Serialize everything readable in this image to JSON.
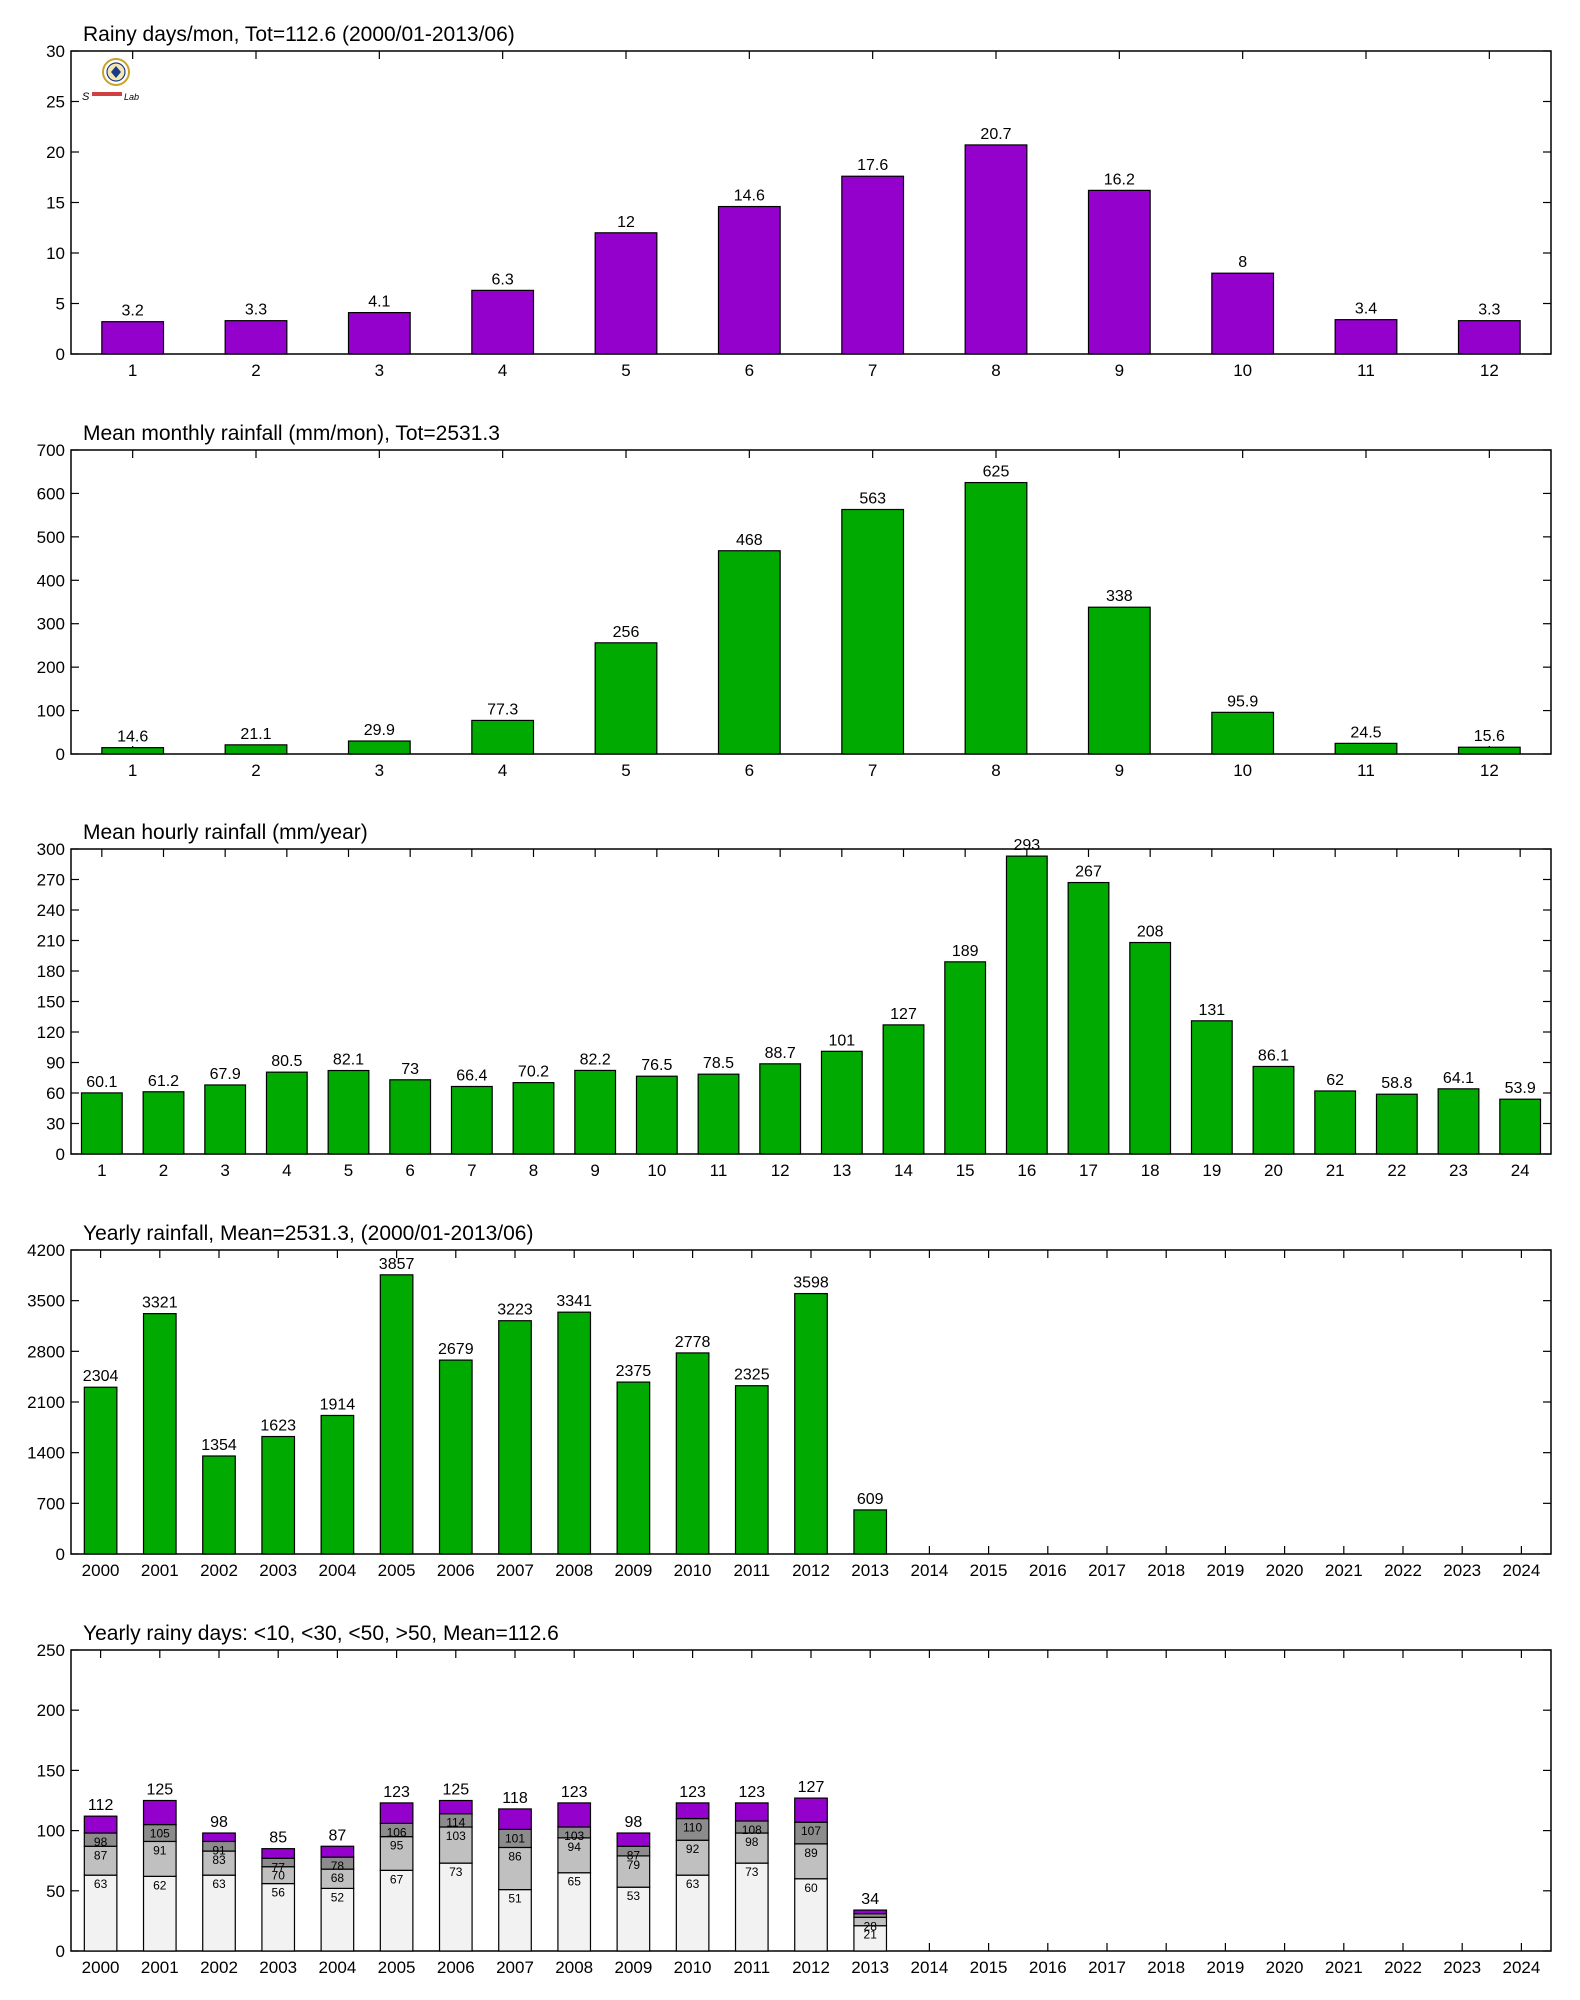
{
  "colors": {
    "purple": "#9400cc",
    "green": "#00aa00",
    "frame": "#000000",
    "stack_lt10": "#f2f2f2",
    "stack_lt30": "#c0c0c0",
    "stack_lt50": "#8c8c8c",
    "stack_gt50": "#9400cc"
  },
  "logo": {
    "text_left": "S",
    "text_right": "Lab",
    "icon": "lab-seal-logo-icon"
  },
  "chart_data": [
    {
      "type": "bar",
      "title": "Rainy days/mon, Tot=112.6 (2000/01-2013/06)",
      "categories": [
        "1",
        "2",
        "3",
        "4",
        "5",
        "6",
        "7",
        "8",
        "9",
        "10",
        "11",
        "12"
      ],
      "values": [
        3.2,
        3.3,
        4.1,
        6.3,
        12,
        14.6,
        17.6,
        20.7,
        16.2,
        8,
        3.4,
        3.3
      ],
      "labels": [
        "3.2",
        "3.3",
        "4.1",
        "6.3",
        "12",
        "14.6",
        "17.6",
        "20.7",
        "16.2",
        "8",
        "3.4",
        "3.3"
      ],
      "yticks": [
        "0",
        "5",
        "10",
        "15",
        "20",
        "25",
        "30"
      ],
      "ylim": [
        0,
        30
      ],
      "color": "purple",
      "grid": false
    },
    {
      "type": "bar",
      "title": "Mean monthly rainfall (mm/mon), Tot=2531.3",
      "categories": [
        "1",
        "2",
        "3",
        "4",
        "5",
        "6",
        "7",
        "8",
        "9",
        "10",
        "11",
        "12"
      ],
      "values": [
        14.6,
        21.1,
        29.9,
        77.3,
        256,
        468,
        563,
        625,
        338,
        95.9,
        24.5,
        15.6
      ],
      "labels": [
        "14.6",
        "21.1",
        "29.9",
        "77.3",
        "256",
        "468",
        "563",
        "625",
        "338",
        "95.9",
        "24.5",
        "15.6"
      ],
      "yticks": [
        "0",
        "100",
        "200",
        "300",
        "400",
        "500",
        "600",
        "700"
      ],
      "ylim": [
        0,
        700
      ],
      "color": "green",
      "grid": false
    },
    {
      "type": "bar",
      "title": "Mean hourly rainfall (mm/year)",
      "categories": [
        "1",
        "2",
        "3",
        "4",
        "5",
        "6",
        "7",
        "8",
        "9",
        "10",
        "11",
        "12",
        "13",
        "14",
        "15",
        "16",
        "17",
        "18",
        "19",
        "20",
        "21",
        "22",
        "23",
        "24"
      ],
      "values": [
        60.1,
        61.2,
        67.9,
        80.5,
        82.1,
        73,
        66.4,
        70.2,
        82.2,
        76.5,
        78.5,
        88.7,
        101,
        127,
        189,
        293,
        267,
        208,
        131,
        86.1,
        62,
        58.8,
        64.1,
        53.9
      ],
      "labels": [
        "60.1",
        "61.2",
        "67.9",
        "80.5",
        "82.1",
        "73",
        "66.4",
        "70.2",
        "82.2",
        "76.5",
        "78.5",
        "88.7",
        "101",
        "127",
        "189",
        "293",
        "267",
        "208",
        "131",
        "86.1",
        "62",
        "58.8",
        "64.1",
        "53.9"
      ],
      "yticks": [
        "0",
        "30",
        "60",
        "90",
        "120",
        "150",
        "180",
        "210",
        "240",
        "270",
        "300"
      ],
      "ylim": [
        0,
        300
      ],
      "color": "green",
      "grid": false
    },
    {
      "type": "bar",
      "title": "Yearly rainfall, Mean=2531.3, (2000/01-2013/06)",
      "categories": [
        "2000",
        "2001",
        "2002",
        "2003",
        "2004",
        "2005",
        "2006",
        "2007",
        "2008",
        "2009",
        "2010",
        "2011",
        "2012",
        "2013",
        "2014",
        "2015",
        "2016",
        "2017",
        "2018",
        "2019",
        "2020",
        "2021",
        "2022",
        "2023",
        "2024"
      ],
      "values": [
        2304,
        3321,
        1354,
        1623,
        1914,
        3857,
        2679,
        3223,
        3341,
        2375,
        2778,
        2325,
        3598,
        609,
        null,
        null,
        null,
        null,
        null,
        null,
        null,
        null,
        null,
        null,
        null
      ],
      "labels": [
        "2304",
        "3321",
        "1354",
        "1623",
        "1914",
        "3857",
        "2679",
        "3223",
        "3341",
        "2375",
        "2778",
        "2325",
        "3598",
        "609",
        "",
        "",
        "",
        "",
        "",
        "",
        "",
        "",
        "",
        "",
        ""
      ],
      "yticks": [
        "0",
        "700",
        "1400",
        "2100",
        "2800",
        "3500",
        "4200"
      ],
      "ylim": [
        0,
        4200
      ],
      "color": "green",
      "grid": false
    },
    {
      "type": "bar",
      "stacked": true,
      "title": "Yearly rainy days: <10, <30, <50, >50, Mean=112.6",
      "categories": [
        "2000",
        "2001",
        "2002",
        "2003",
        "2004",
        "2005",
        "2006",
        "2007",
        "2008",
        "2009",
        "2010",
        "2011",
        "2012",
        "2013",
        "2014",
        "2015",
        "2016",
        "2017",
        "2018",
        "2019",
        "2020",
        "2021",
        "2022",
        "2023",
        "2024"
      ],
      "cumulative": [
        [
          63,
          87,
          98,
          112
        ],
        [
          62,
          91,
          105,
          125
        ],
        [
          63,
          83,
          91,
          98
        ],
        [
          56,
          70,
          77,
          85
        ],
        [
          52,
          68,
          78,
          87
        ],
        [
          67,
          95,
          106,
          123
        ],
        [
          73,
          103,
          114,
          125
        ],
        [
          51,
          86,
          101,
          118
        ],
        [
          65,
          94,
          103,
          123
        ],
        [
          53,
          79,
          87,
          98
        ],
        [
          63,
          92,
          110,
          123
        ],
        [
          73,
          98,
          108,
          123
        ],
        [
          60,
          89,
          107,
          127
        ],
        [
          21,
          28,
          31,
          34
        ],
        null,
        null,
        null,
        null,
        null,
        null,
        null,
        null,
        null,
        null,
        null
      ],
      "segment_labels": [
        [
          "63",
          "87",
          "98"
        ],
        [
          "62",
          "91",
          "105"
        ],
        [
          "63",
          "83",
          "91"
        ],
        [
          "56",
          "70",
          "77"
        ],
        [
          "52",
          "68",
          "78"
        ],
        [
          "67",
          "95",
          "106"
        ],
        [
          "73",
          "103",
          "114"
        ],
        [
          "51",
          "86",
          "101"
        ],
        [
          "65",
          "94",
          "103"
        ],
        [
          "53",
          "79",
          "87"
        ],
        [
          "63",
          "92",
          "110"
        ],
        [
          "73",
          "98",
          "108"
        ],
        [
          "60",
          "89",
          "107"
        ],
        [
          "21",
          "28",
          ""
        ],
        null,
        null,
        null,
        null,
        null,
        null,
        null,
        null,
        null,
        null,
        null
      ],
      "total_labels": [
        "112",
        "125",
        "98",
        "85",
        "87",
        "123",
        "125",
        "118",
        "123",
        "98",
        "123",
        "123",
        "127",
        "34",
        "",
        "",
        "",
        "",
        "",
        "",
        "",
        "",
        "",
        "",
        ""
      ],
      "series_colors": [
        "stack_lt10",
        "stack_lt30",
        "stack_lt50",
        "stack_gt50"
      ],
      "yticks": [
        "0",
        "50",
        "100",
        "150",
        "200",
        "250"
      ],
      "ylim": [
        0,
        250
      ],
      "grid": false
    }
  ]
}
